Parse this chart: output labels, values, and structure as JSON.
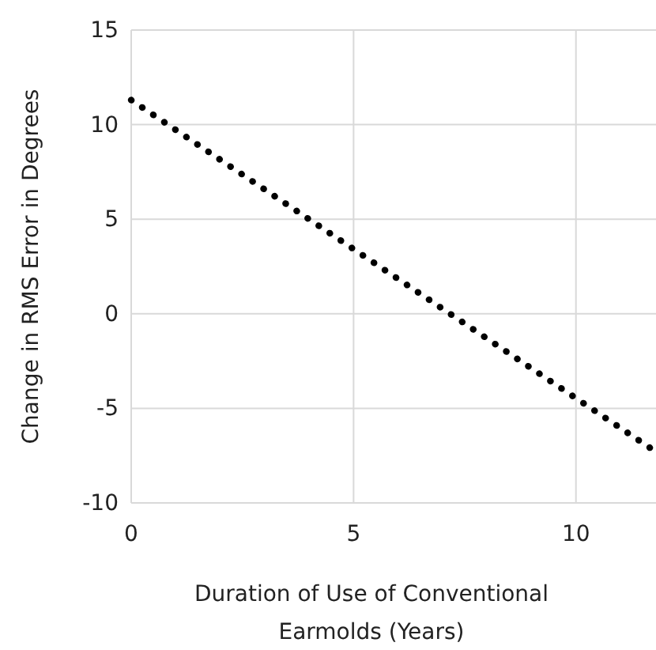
{
  "chart_data": {
    "type": "line",
    "xlabel": "Duration of Use of Conventional Earmolds (Years)",
    "ylabel": "Change in RMS Error in Degrees",
    "series": [
      {
        "color": "#000000",
        "x": [
          0,
          11.8
        ],
        "values": [
          11.3,
          -7.3
        ]
      }
    ],
    "xlim": [
      0,
      11.8
    ],
    "xticks": [
      0,
      5,
      10
    ],
    "ylim": [
      -10,
      15
    ],
    "yticks": [
      -10,
      -5,
      0,
      5,
      10,
      15
    ],
    "grid": true,
    "line_style": "dotted",
    "marker": "none"
  }
}
